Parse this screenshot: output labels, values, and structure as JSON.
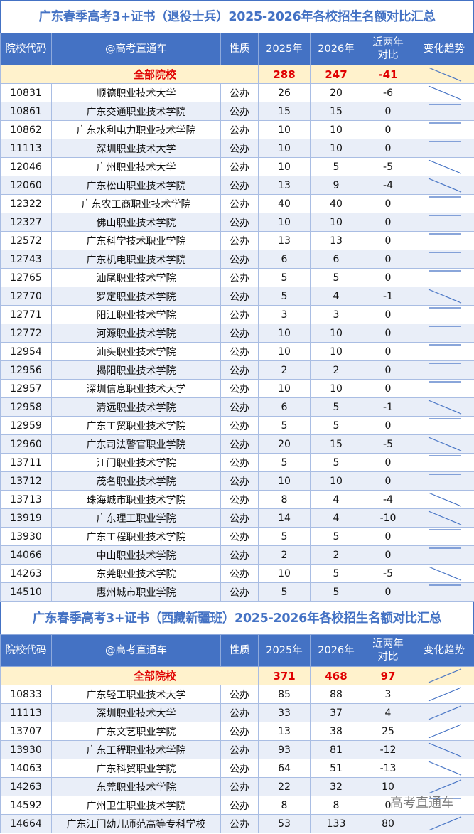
{
  "headers": [
    "院校代码",
    "@高考直通车",
    "性质",
    "2025年",
    "2026年",
    "近两年对比",
    "变化趋势"
  ],
  "sections": [
    {
      "title": "广东春季高考3+证书（退役士兵）2025-2026年各校招生名额对比汇总",
      "total": {
        "label": "全部院校",
        "y2025": "288",
        "y2026": "247",
        "diff": "-41"
      },
      "rows": [
        [
          "10831",
          "顺德职业技术大学",
          "公办",
          "26",
          "20",
          "-6"
        ],
        [
          "10861",
          "广东交通职业技术学院",
          "公办",
          "15",
          "15",
          "0"
        ],
        [
          "10862",
          "广东水利电力职业技术学院",
          "公办",
          "10",
          "10",
          "0"
        ],
        [
          "11113",
          "深圳职业技术大学",
          "公办",
          "10",
          "10",
          "0"
        ],
        [
          "12046",
          "广州职业技术大学",
          "公办",
          "10",
          "5",
          "-5"
        ],
        [
          "12060",
          "广东松山职业技术学院",
          "公办",
          "13",
          "9",
          "-4"
        ],
        [
          "12322",
          "广东农工商职业技术学院",
          "公办",
          "40",
          "40",
          "0"
        ],
        [
          "12327",
          "佛山职业技术学院",
          "公办",
          "10",
          "10",
          "0"
        ],
        [
          "12572",
          "广东科学技术职业学院",
          "公办",
          "13",
          "13",
          "0"
        ],
        [
          "12743",
          "广东机电职业技术学院",
          "公办",
          "6",
          "6",
          "0"
        ],
        [
          "12765",
          "汕尾职业技术学院",
          "公办",
          "5",
          "5",
          "0"
        ],
        [
          "12770",
          "罗定职业技术学院",
          "公办",
          "5",
          "4",
          "-1"
        ],
        [
          "12771",
          "阳江职业技术学院",
          "公办",
          "3",
          "3",
          "0"
        ],
        [
          "12772",
          "河源职业技术学院",
          "公办",
          "10",
          "10",
          "0"
        ],
        [
          "12954",
          "汕头职业技术学院",
          "公办",
          "10",
          "10",
          "0"
        ],
        [
          "12956",
          "揭阳职业技术学院",
          "公办",
          "2",
          "2",
          "0"
        ],
        [
          "12957",
          "深圳信息职业技术大学",
          "公办",
          "10",
          "10",
          "0"
        ],
        [
          "12958",
          "清远职业技术学院",
          "公办",
          "6",
          "5",
          "-1"
        ],
        [
          "12959",
          "广东工贸职业技术学院",
          "公办",
          "5",
          "5",
          "0"
        ],
        [
          "12960",
          "广东司法警官职业学院",
          "公办",
          "20",
          "15",
          "-5"
        ],
        [
          "13711",
          "江门职业技术学院",
          "公办",
          "5",
          "5",
          "0"
        ],
        [
          "13712",
          "茂名职业技术学院",
          "公办",
          "10",
          "10",
          "0"
        ],
        [
          "13713",
          "珠海城市职业技术学院",
          "公办",
          "8",
          "4",
          "-4"
        ],
        [
          "13919",
          "广东理工职业学院",
          "公办",
          "14",
          "4",
          "-10"
        ],
        [
          "13930",
          "广东工程职业技术学院",
          "公办",
          "5",
          "5",
          "0"
        ],
        [
          "14066",
          "中山职业技术学院",
          "公办",
          "2",
          "2",
          "0"
        ],
        [
          "14263",
          "东莞职业技术学院",
          "公办",
          "10",
          "5",
          "-5"
        ],
        [
          "14510",
          "惠州城市职业学院",
          "公办",
          "5",
          "5",
          "0"
        ]
      ]
    },
    {
      "title": "广东春季高考3+证书（西藏新疆班）2025-2026年各校招生名额对比汇总",
      "total": {
        "label": "全部院校",
        "y2025": "371",
        "y2026": "468",
        "diff": "97"
      },
      "rows": [
        [
          "10833",
          "广东轻工职业技术大学",
          "公办",
          "85",
          "88",
          "3"
        ],
        [
          "11113",
          "深圳职业技术大学",
          "公办",
          "33",
          "37",
          "4"
        ],
        [
          "13707",
          "广东文艺职业学院",
          "公办",
          "13",
          "38",
          "25"
        ],
        [
          "13930",
          "广东工程职业技术学院",
          "公办",
          "93",
          "81",
          "-12"
        ],
        [
          "14063",
          "广东科贸职业学院",
          "公办",
          "64",
          "51",
          "-13"
        ],
        [
          "14263",
          "东莞职业技术学院",
          "公办",
          "22",
          "32",
          "10"
        ],
        [
          "14592",
          "广州卫生职业技术学院",
          "公办",
          "8",
          "8",
          "0"
        ],
        [
          "14664",
          "广东江门幼儿师范高等专科学校",
          "公办",
          "53",
          "133",
          "80"
        ]
      ]
    }
  ],
  "watermark": "高考直通车",
  "colors": {
    "header": "#4472c4",
    "total_bg": "#fff2cc",
    "total_text": "#e00000",
    "stripe": "#e9eef8",
    "trend_line": "#4472c4"
  }
}
